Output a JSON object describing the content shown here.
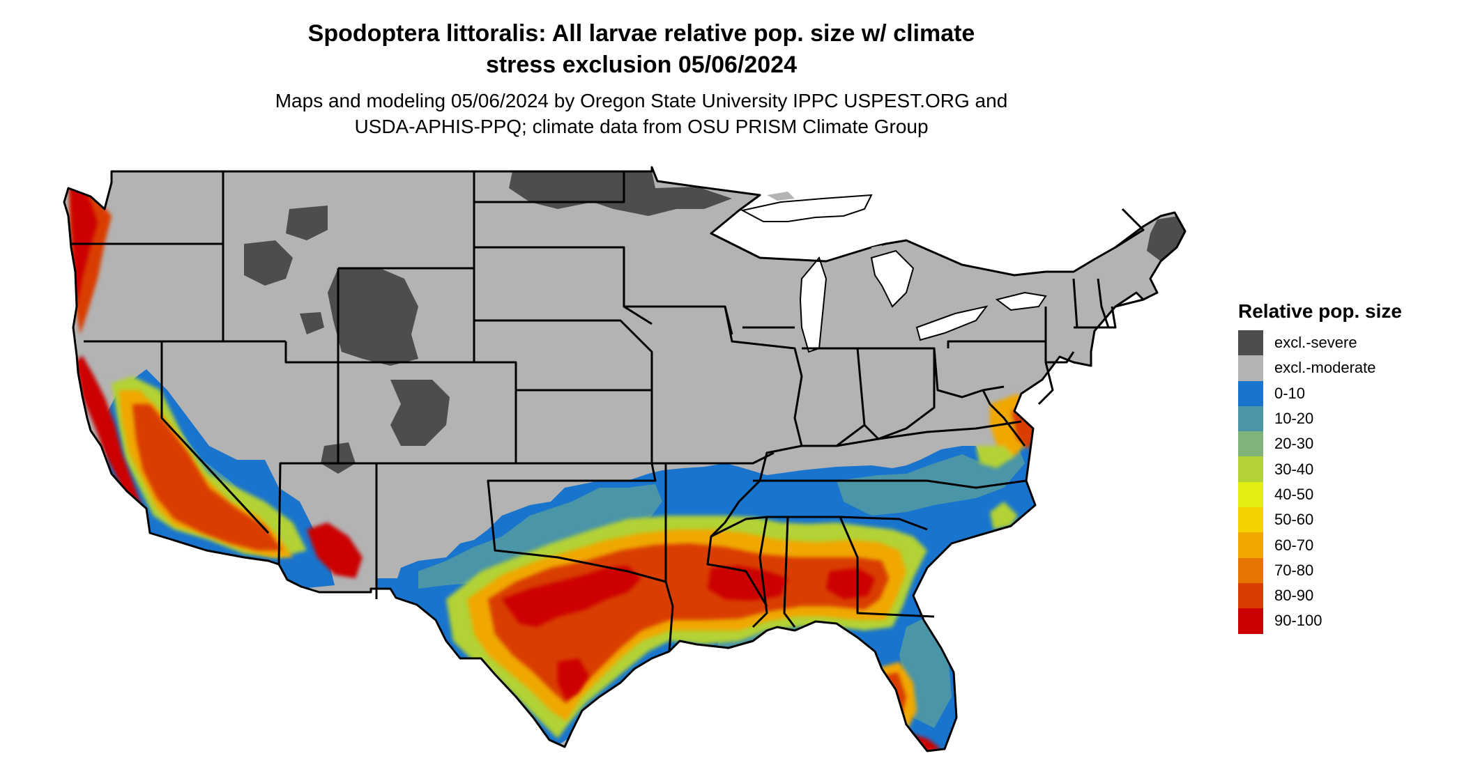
{
  "title_line1": "Spodoptera littoralis: All larvae relative pop. size w/ climate",
  "title_line2": "stress exclusion 05/06/2024",
  "subtitle_line1": "Maps and modeling 05/06/2024 by Oregon State University IPPC USPEST.ORG and",
  "subtitle_line2": "USDA-APHIS-PPQ; climate data from OSU PRISM Climate Group",
  "legend": {
    "title": "Relative pop. size",
    "items": [
      {
        "label": "excl.-severe",
        "color": "#4d4d4d"
      },
      {
        "label": "excl.-moderate",
        "color": "#b3b3b3"
      },
      {
        "label": "0-10",
        "color": "#1874cd"
      },
      {
        "label": "10-20",
        "color": "#4a95a8"
      },
      {
        "label": "20-30",
        "color": "#7fb37a"
      },
      {
        "label": "30-40",
        "color": "#b2d235"
      },
      {
        "label": "40-50",
        "color": "#e5ee12"
      },
      {
        "label": "50-60",
        "color": "#f6d100"
      },
      {
        "label": "60-70",
        "color": "#f0a800"
      },
      {
        "label": "70-80",
        "color": "#e57500"
      },
      {
        "label": "80-90",
        "color": "#d93d00"
      },
      {
        "label": "90-100",
        "color": "#cc0000"
      }
    ]
  }
}
